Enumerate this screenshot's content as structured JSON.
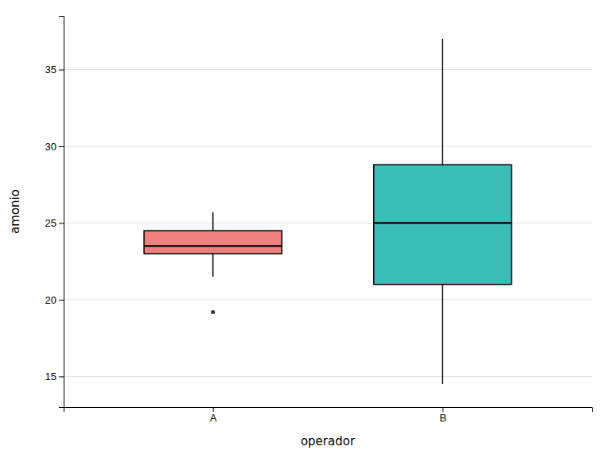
{
  "chart_data": {
    "type": "box",
    "categories": [
      "A",
      "B"
    ],
    "boxes": [
      {
        "q1": 23.0,
        "median": 23.5,
        "q3": 24.5,
        "whisker_low": 21.5,
        "whisker_high": 25.7,
        "outliers": [
          19.2
        ]
      },
      {
        "q1": 21.0,
        "median": 25.0,
        "q3": 28.8,
        "whisker_low": 14.5,
        "whisker_high": 37.0,
        "outliers": []
      }
    ],
    "colors": [
      "#F08080",
      "#3DBDB7"
    ],
    "xlabel": "operador",
    "ylabel": "amonio",
    "ylim": [
      13.0,
      38.5
    ],
    "yticks": [
      15,
      20,
      25,
      30,
      35
    ],
    "grid": true
  }
}
